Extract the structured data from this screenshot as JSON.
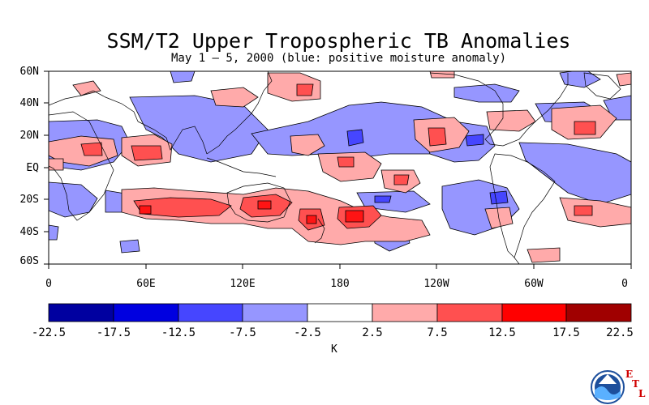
{
  "title": "SSM/T2 Upper Tropospheric TB Anomalies",
  "subtitle": "May 1 – 5, 2000 (blue: positive moisture anomaly)",
  "lat_ticks": [
    "60N",
    "40N",
    "20N",
    "EQ",
    "20S",
    "40S",
    "60S"
  ],
  "lon_ticks": [
    "0",
    "60E",
    "120E",
    "180",
    "120W",
    "60W",
    "0"
  ],
  "colorbar": {
    "labels": [
      "-22.5",
      "-17.5",
      "-12.5",
      "-7.5",
      "-2.5",
      "2.5",
      "7.5",
      "12.5",
      "17.5",
      "22.5"
    ],
    "colors": [
      "#0000a0",
      "#0000e0",
      "#4646ff",
      "#9696ff",
      "#ffffff",
      "#ffaaaa",
      "#ff5050",
      "#ff0000",
      "#a00000"
    ],
    "units": "K"
  },
  "colors": {
    "negative_light": "#9696ff",
    "negative_mid": "#4646ff",
    "positive_light": "#ffaaaa",
    "positive_mid": "#ff5050",
    "positive_strong": "#ff1414"
  },
  "logo": {
    "name": "NOAA",
    "etl_letters": [
      "E",
      "T",
      "L"
    ]
  }
}
